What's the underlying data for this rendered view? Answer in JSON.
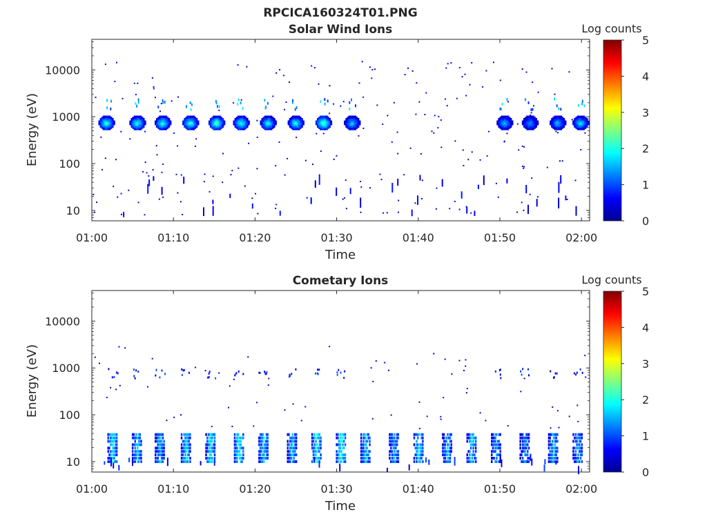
{
  "figure_title": "RPCICA160324T01.PNG",
  "chart_data": [
    {
      "type": "heatmap",
      "title": "Solar Wind Ions",
      "xlabel": "Time",
      "ylabel": "Energy (eV)",
      "xlim": [
        "01:00",
        "02:01"
      ],
      "ylim": [
        6,
        45000
      ],
      "y_scale": "log",
      "x_ticks": [
        "01:00",
        "01:10",
        "01:20",
        "01:30",
        "01:40",
        "01:50",
        "02:00"
      ],
      "y_ticks": [
        "10",
        "100",
        "1000",
        "10000"
      ],
      "colorbar": {
        "label": "Log counts",
        "range": [
          0,
          5
        ],
        "ticks": [
          "0",
          "1",
          "2",
          "3",
          "4",
          "5"
        ],
        "colormap": "jet"
      },
      "peaks_minutes": [
        1.7,
        5.5,
        8.6,
        12,
        15.2,
        18.2,
        21.5,
        24.9,
        28.3,
        31.8,
        50.5,
        53.6,
        57.0,
        59.8
      ],
      "peak_log_counts": [
        2.2,
        2.1,
        2.1,
        2.2,
        2.4,
        2.1,
        2.0,
        2.1,
        2.5,
        1.7,
        1.6,
        1.4,
        1.6,
        1.8
      ],
      "main_band_energy_ev": [
        550,
        1000
      ],
      "secondary_band_energy_ev": [
        1400,
        2400
      ],
      "low_energy_sparse_ev": [
        8,
        50
      ]
    },
    {
      "type": "heatmap",
      "title": "Cometary Ions",
      "xlabel": "Time",
      "ylabel": "Energy (eV)",
      "xlim": [
        "01:00",
        "02:01"
      ],
      "ylim": [
        6,
        45000
      ],
      "y_scale": "log",
      "x_ticks": [
        "01:00",
        "01:10",
        "01:20",
        "01:30",
        "01:40",
        "01:50",
        "02:00"
      ],
      "y_ticks": [
        "10",
        "100",
        "1000",
        "10000"
      ],
      "colorbar": {
        "label": "Log counts",
        "range": [
          0,
          5
        ],
        "ticks": [
          "0",
          "1",
          "2",
          "3",
          "4",
          "5"
        ],
        "colormap": "jet"
      },
      "low_band_minutes": [
        2.5,
        5.5,
        8.3,
        11.5,
        14.5,
        18.0,
        21.0,
        24.5,
        27.5,
        30.5,
        33.5,
        37.0,
        40.0,
        43.5,
        46.5,
        49.5,
        53.0,
        56.5,
        59.5
      ],
      "low_band_log_counts": [
        1.8,
        1.6,
        1.5,
        1.7,
        1.8,
        2.0,
        1.7,
        1.5,
        1.9,
        2.0,
        1.6,
        1.5,
        1.7,
        1.5,
        1.6,
        1.4,
        1.3,
        1.5,
        1.4
      ],
      "low_band_energy_ev": [
        10,
        40
      ],
      "upper_band_energy_ev": [
        600,
        950
      ]
    }
  ]
}
